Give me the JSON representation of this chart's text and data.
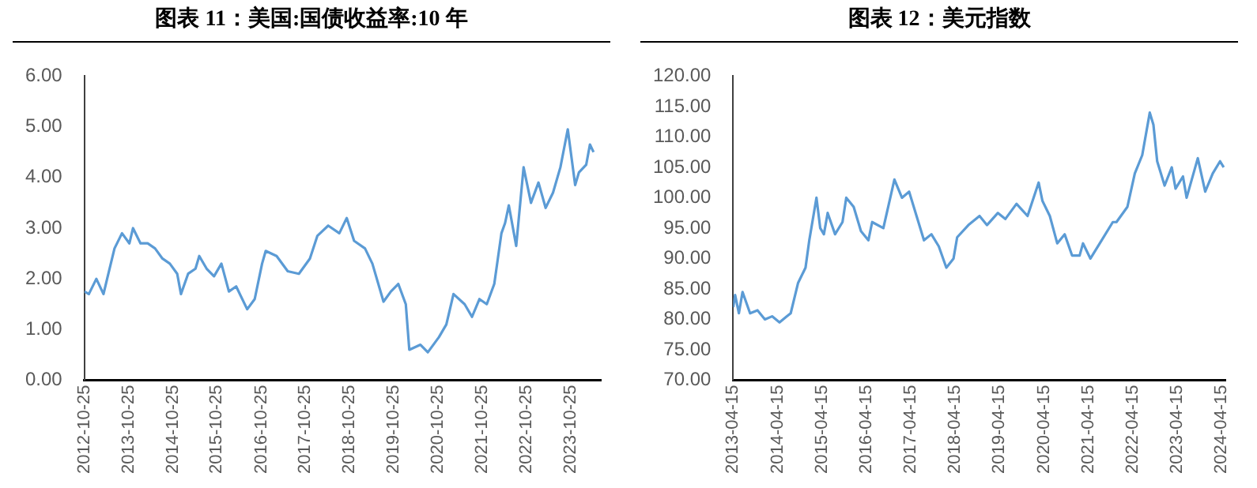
{
  "chart_data": [
    {
      "type": "line",
      "title": "图表 11：美国:国债收益率:10 年",
      "x": [
        "2012-10-25",
        "2012-12",
        "2013-02",
        "2013-04",
        "2013-05",
        "2013-07",
        "2013-09",
        "2013-11",
        "2013-12",
        "2014-02",
        "2014-04",
        "2014-06",
        "2014-08",
        "2014-10",
        "2014-12",
        "2015-01",
        "2015-03",
        "2015-05",
        "2015-06",
        "2015-08",
        "2015-10",
        "2015-12",
        "2016-02",
        "2016-04",
        "2016-07",
        "2016-09",
        "2016-11",
        "2016-12",
        "2017-03",
        "2017-06",
        "2017-09",
        "2017-12",
        "2018-02",
        "2018-05",
        "2018-08",
        "2018-10",
        "2018-12",
        "2019-03",
        "2019-05",
        "2019-08",
        "2019-10",
        "2019-12",
        "2020-02",
        "2020-03",
        "2020-06",
        "2020-08",
        "2020-11",
        "2021-01",
        "2021-03",
        "2021-06",
        "2021-08",
        "2021-10",
        "2021-12",
        "2022-02",
        "2022-04",
        "2022-05",
        "2022-06",
        "2022-08",
        "2022-10",
        "2022-12",
        "2023-02",
        "2023-04",
        "2023-06",
        "2023-08",
        "2023-10",
        "2023-12",
        "2024-01",
        "2024-03",
        "2024-04",
        "2024-05"
      ],
      "series": [
        {
          "color": "#5b9bd5",
          "values": [
            1.75,
            1.7,
            2.0,
            1.7,
            2.0,
            2.6,
            2.9,
            2.7,
            3.0,
            2.7,
            2.7,
            2.6,
            2.4,
            2.3,
            2.1,
            1.7,
            2.1,
            2.2,
            2.45,
            2.2,
            2.05,
            2.3,
            1.75,
            1.85,
            1.4,
            1.6,
            2.3,
            2.55,
            2.45,
            2.15,
            2.1,
            2.4,
            2.85,
            3.05,
            2.9,
            3.2,
            2.75,
            2.6,
            2.3,
            1.55,
            1.75,
            1.9,
            1.5,
            0.6,
            0.7,
            0.55,
            0.85,
            1.1,
            1.7,
            1.5,
            1.25,
            1.6,
            1.5,
            1.9,
            2.9,
            3.1,
            3.45,
            2.65,
            4.2,
            3.5,
            3.9,
            3.4,
            3.7,
            4.2,
            4.95,
            3.85,
            4.1,
            4.25,
            4.65,
            4.5
          ]
        }
      ],
      "xlim": [
        "2012-10-25",
        "2024-06-30"
      ],
      "xticks": [
        "2012-10-25",
        "2013-10-25",
        "2014-10-25",
        "2015-10-25",
        "2016-10-25",
        "2017-10-25",
        "2018-10-25",
        "2019-10-25",
        "2020-10-25",
        "2021-10-25",
        "2022-10-25",
        "2023-10-25"
      ],
      "ylim": [
        0,
        6
      ],
      "yticks": [
        {
          "value": 0,
          "label": "0.00"
        },
        {
          "value": 1,
          "label": "1.00"
        },
        {
          "value": 2,
          "label": "2.00"
        },
        {
          "value": 3,
          "label": "3.00"
        },
        {
          "value": 4,
          "label": "4.00"
        },
        {
          "value": 5,
          "label": "5.00"
        },
        {
          "value": 6,
          "label": "6.00"
        }
      ],
      "grid": false,
      "legend": false
    },
    {
      "type": "line",
      "title": "图表 12：美元指数",
      "x": [
        "2013-04-15",
        "2013-05",
        "2013-06",
        "2013-07",
        "2013-09",
        "2013-11",
        "2014-01",
        "2014-03",
        "2014-05",
        "2014-07",
        "2014-08",
        "2014-10",
        "2014-12",
        "2015-01",
        "2015-03",
        "2015-04",
        "2015-05",
        "2015-06",
        "2015-08",
        "2015-10",
        "2015-11",
        "2016-01",
        "2016-03",
        "2016-05",
        "2016-06",
        "2016-09",
        "2016-12",
        "2017-02",
        "2017-04",
        "2017-06",
        "2017-08",
        "2017-10",
        "2017-12",
        "2018-02",
        "2018-04",
        "2018-05",
        "2018-08",
        "2018-11",
        "2019-01",
        "2019-04",
        "2019-06",
        "2019-09",
        "2019-12",
        "2020-03",
        "2020-04",
        "2020-06",
        "2020-08",
        "2020-10",
        "2020-12",
        "2021-02",
        "2021-03",
        "2021-05",
        "2021-08",
        "2021-11",
        "2021-12",
        "2022-03",
        "2022-05",
        "2022-07",
        "2022-09",
        "2022-10",
        "2022-11",
        "2023-01",
        "2023-03",
        "2023-04",
        "2023-06",
        "2023-07",
        "2023-10",
        "2023-12",
        "2024-02",
        "2024-04",
        "2024-05"
      ],
      "series": [
        {
          "color": "#5b9bd5",
          "values": [
            82,
            84,
            81,
            84.5,
            81,
            81.5,
            80,
            80.5,
            79.5,
            80.5,
            81,
            86,
            88.5,
            93,
            100,
            95,
            94,
            97.5,
            94,
            96,
            100,
            98.5,
            94.5,
            93,
            96,
            95,
            103,
            100,
            101,
            97,
            93,
            94,
            92,
            88.5,
            90,
            93.5,
            95.5,
            97,
            95.5,
            97.5,
            96.5,
            99,
            97,
            102.5,
            99.5,
            97,
            92.5,
            94,
            90.5,
            90.5,
            92.5,
            90,
            93,
            96,
            96,
            98.5,
            104,
            107,
            114,
            112,
            106,
            102,
            105,
            101.5,
            103.5,
            100,
            106.5,
            101,
            104,
            106,
            105
          ]
        }
      ],
      "xlim": [
        "2013-04-15",
        "2024-05-15"
      ],
      "xticks": [
        "2013-04-15",
        "2014-04-15",
        "2015-04-15",
        "2016-04-15",
        "2017-04-15",
        "2018-04-15",
        "2019-04-15",
        "2020-04-15",
        "2021-04-15",
        "2022-04-15",
        "2023-04-15",
        "2024-04-15"
      ],
      "ylim": [
        70,
        120
      ],
      "yticks": [
        {
          "value": 70,
          "label": "70.00"
        },
        {
          "value": 75,
          "label": "75.00"
        },
        {
          "value": 80,
          "label": "80.00"
        },
        {
          "value": 85,
          "label": "85.00"
        },
        {
          "value": 90,
          "label": "90.00"
        },
        {
          "value": 95,
          "label": "95.00"
        },
        {
          "value": 100,
          "label": "100.00"
        },
        {
          "value": 105,
          "label": "105.00"
        },
        {
          "value": 110,
          "label": "110.00"
        },
        {
          "value": 115,
          "label": "115.00"
        },
        {
          "value": 120,
          "label": "120.00"
        }
      ],
      "grid": false,
      "legend": false
    }
  ]
}
